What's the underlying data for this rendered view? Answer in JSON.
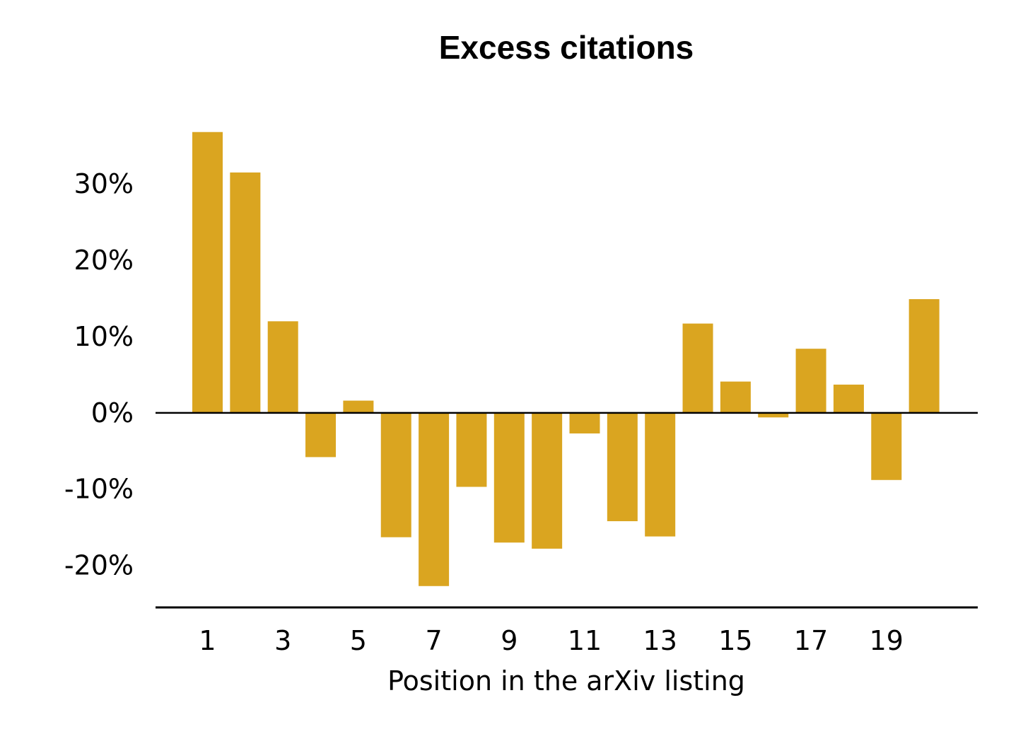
{
  "chart_data": {
    "type": "bar",
    "title": "Excess citations",
    "xlabel": "Position in the arXiv listing",
    "ylabel": "",
    "categories": [
      1,
      2,
      3,
      4,
      5,
      6,
      7,
      8,
      9,
      10,
      11,
      12,
      13,
      14,
      15,
      16,
      17,
      18,
      19,
      20
    ],
    "values": [
      36.8,
      31.5,
      12.0,
      -5.8,
      1.6,
      -16.3,
      -22.7,
      -9.7,
      -17.0,
      -17.8,
      -2.7,
      -14.2,
      -16.2,
      11.7,
      4.1,
      -0.6,
      8.4,
      3.7,
      -8.8,
      14.9
    ],
    "value_unit": "%",
    "ylim": [
      -25.5,
      41.5
    ],
    "yticks": [
      -20,
      -10,
      0,
      10,
      20,
      30
    ],
    "ytick_labels": [
      "-20%",
      "-10%",
      "0%",
      "10%",
      "20%",
      "30%"
    ],
    "xticks": [
      1,
      3,
      5,
      7,
      9,
      11,
      13,
      15,
      17,
      19
    ],
    "xtick_labels": [
      "1",
      "3",
      "5",
      "7",
      "9",
      "11",
      "13",
      "15",
      "17",
      "19"
    ],
    "bar_color": "#DAA520",
    "zero_line": true,
    "grid": false,
    "legend": "none"
  }
}
